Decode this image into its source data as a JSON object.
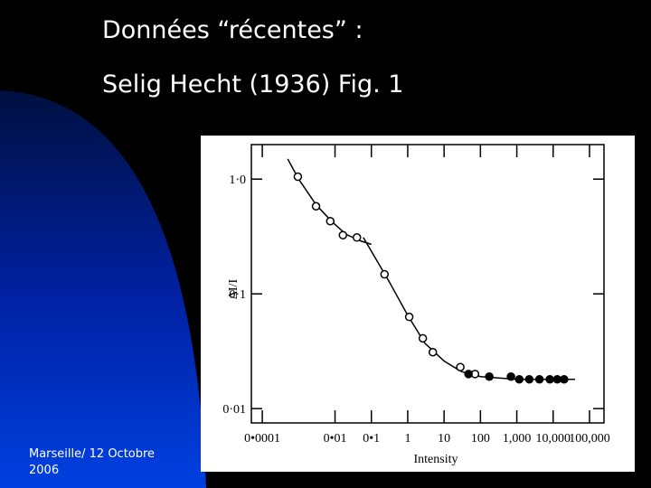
{
  "slide": {
    "title": "Données “récentes” :",
    "subtitle": "Selig Hecht (1936) Fig. 1",
    "footer": [
      "Marseille/ 12 Octobre",
      "2006"
    ]
  },
  "chart_data": {
    "type": "scatter",
    "xlabel": "Intensity",
    "ylabel": "ΔI/I",
    "xscale": "log",
    "yscale": "log",
    "xlim": [
      5e-05,
      250000
    ],
    "ylim": [
      0.0075,
      2
    ],
    "xticks": [
      {
        "value": 0.0001,
        "label": "0•0001"
      },
      {
        "value": 0.01,
        "label": "0•01"
      },
      {
        "value": 0.1,
        "label": "0•1"
      },
      1,
      10,
      100,
      {
        "value": 1000,
        "label": "1,000"
      },
      {
        "value": 10000,
        "label": "10,000"
      },
      {
        "value": 100000,
        "label": "100,000"
      }
    ],
    "yticks": [
      {
        "value": 1,
        "label": "1·0"
      },
      {
        "value": 0.1,
        "label": "0·1"
      },
      {
        "value": 0.01,
        "label": "0·01"
      }
    ],
    "series": [
      {
        "style": "line",
        "color": "#000000",
        "x": [
          0.0005,
          0.001,
          0.003,
          0.008,
          0.02,
          0.05,
          0.1,
          null,
          0.06,
          0.3,
          1,
          3,
          10,
          30,
          100,
          1000,
          40000
        ],
        "values": [
          1.5,
          1.0,
          0.6,
          0.43,
          0.33,
          0.29,
          0.27,
          null,
          0.31,
          0.13,
          0.065,
          0.037,
          0.026,
          0.021,
          0.019,
          0.018,
          0.018
        ]
      },
      {
        "style": "marker",
        "marker": "open",
        "color": "#000000",
        "x": [
          0.00095,
          0.003,
          0.0074,
          0.0165,
          0.04,
          0.23,
          1.1,
          2.6,
          4.9,
          28,
          71
        ],
        "values": [
          1.05,
          0.58,
          0.43,
          0.325,
          0.31,
          0.148,
          0.063,
          0.041,
          0.031,
          0.023,
          0.02
        ]
      },
      {
        "style": "marker",
        "marker": "filled",
        "color": "#000000",
        "x": [
          47,
          175,
          690,
          1170,
          2200,
          4200,
          8100,
          13000,
          20000
        ],
        "values": [
          0.02,
          0.019,
          0.019,
          0.018,
          0.018,
          0.018,
          0.018,
          0.018,
          0.018
        ]
      }
    ]
  }
}
